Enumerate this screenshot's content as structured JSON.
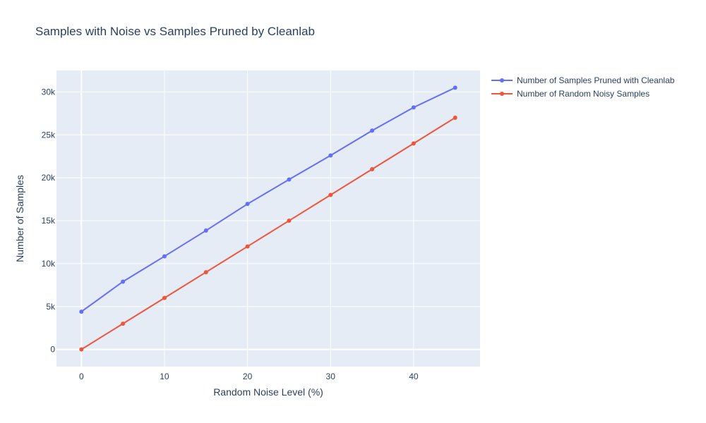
{
  "chart_data": {
    "type": "line",
    "title": "Samples with Noise vs Samples Pruned by Cleanlab",
    "xlabel": "Random Noise Level (%)",
    "ylabel": "Number of Samples",
    "xlim": [
      -3,
      48
    ],
    "ylim": [
      -2000,
      32500
    ],
    "x_ticks": [
      0,
      10,
      20,
      30,
      40
    ],
    "x_tick_labels": [
      "0",
      "10",
      "20",
      "30",
      "40"
    ],
    "y_ticks": [
      0,
      5000,
      10000,
      15000,
      20000,
      25000,
      30000
    ],
    "y_tick_labels": [
      "0",
      "5k",
      "10k",
      "15k",
      "20k",
      "25k",
      "30k"
    ],
    "grid": true,
    "legend_position": "top-right",
    "x": [
      0,
      5,
      10,
      15,
      20,
      25,
      30,
      35,
      40,
      45
    ],
    "series": [
      {
        "name": "Number of Samples Pruned with Cleanlab",
        "color": "#636efa",
        "values": [
          4400,
          7900,
          10850,
          13850,
          16950,
          19800,
          22600,
          25500,
          28200,
          30500
        ]
      },
      {
        "name": "Number of Random Noisy Samples",
        "color": "#ef553b",
        "values": [
          0,
          3000,
          6000,
          9000,
          12000,
          15000,
          18000,
          21000,
          24000,
          27000
        ]
      }
    ],
    "colors": {
      "plot_background": "#e5ecf6",
      "grid": "#ffffff",
      "text": "#2a3f5f"
    }
  }
}
